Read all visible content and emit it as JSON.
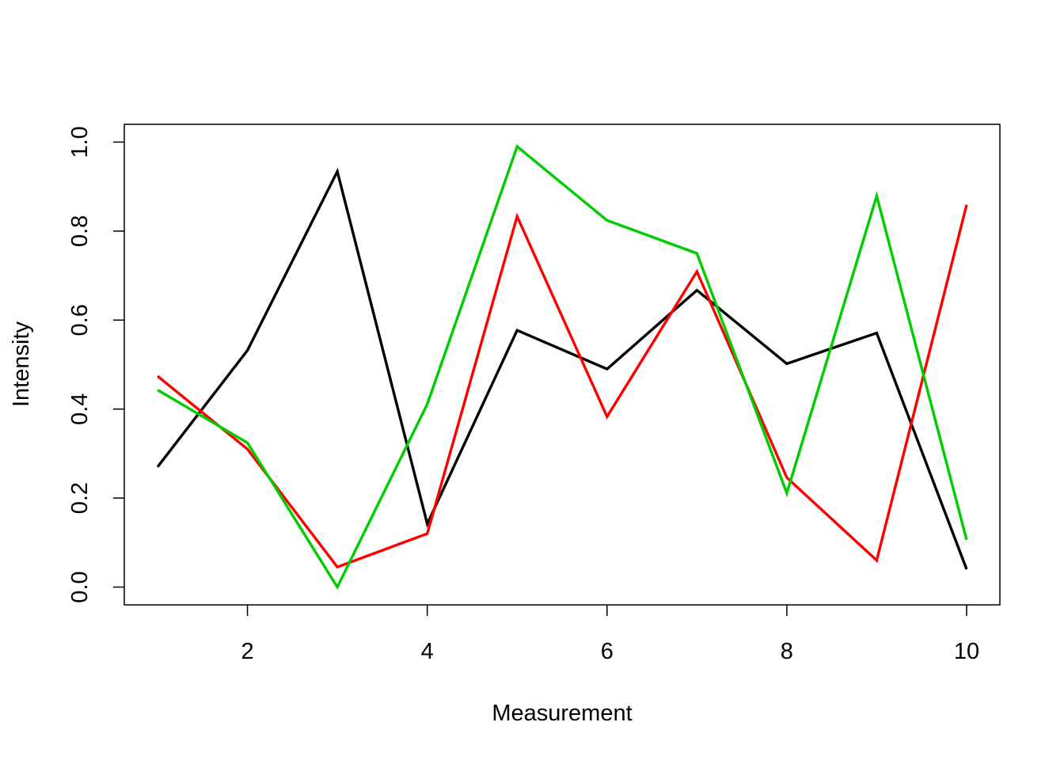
{
  "chart_data": {
    "type": "line",
    "title": "",
    "xlabel": "Measurement",
    "ylabel": "Intensity",
    "x": [
      1,
      2,
      3,
      4,
      5,
      6,
      7,
      8,
      9,
      10
    ],
    "xlim": [
      0.63,
      10.37
    ],
    "ylim": [
      -0.04,
      1.04
    ],
    "x_ticks": [
      2,
      4,
      6,
      8,
      10
    ],
    "x_tick_labels": [
      "2",
      "4",
      "6",
      "8",
      "10"
    ],
    "y_ticks": [
      0.0,
      0.2,
      0.4,
      0.6,
      0.8,
      1.0
    ],
    "y_tick_labels": [
      "0.0",
      "0.2",
      "0.4",
      "0.6",
      "0.8",
      "1.0"
    ],
    "grid": false,
    "legend": "none",
    "series": [
      {
        "color": "#000000",
        "values": [
          0.27,
          0.532,
          0.934,
          0.142,
          0.577,
          0.49,
          0.667,
          0.502,
          0.571,
          0.04
        ]
      },
      {
        "color": "#ff0000",
        "values": [
          0.474,
          0.31,
          0.045,
          0.12,
          0.833,
          0.383,
          0.709,
          0.246,
          0.06,
          0.859
        ]
      },
      {
        "color": "#00cd00",
        "values": [
          0.443,
          0.324,
          0.0,
          0.411,
          0.99,
          0.824,
          0.75,
          0.211,
          0.879,
          0.106
        ]
      }
    ]
  }
}
